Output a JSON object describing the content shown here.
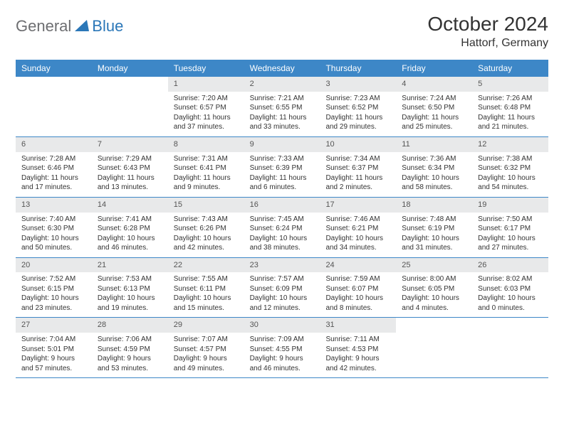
{
  "brand": {
    "part1": "General",
    "part2": "Blue"
  },
  "title": "October 2024",
  "location": "Hattorf, Germany",
  "accent_color": "#3d87c7",
  "header_bg": "#e8e9ea",
  "day_names": [
    "Sunday",
    "Monday",
    "Tuesday",
    "Wednesday",
    "Thursday",
    "Friday",
    "Saturday"
  ],
  "weeks": [
    [
      null,
      null,
      {
        "n": "1",
        "sr": "7:20 AM",
        "ss": "6:57 PM",
        "dl": "11 hours and 37 minutes."
      },
      {
        "n": "2",
        "sr": "7:21 AM",
        "ss": "6:55 PM",
        "dl": "11 hours and 33 minutes."
      },
      {
        "n": "3",
        "sr": "7:23 AM",
        "ss": "6:52 PM",
        "dl": "11 hours and 29 minutes."
      },
      {
        "n": "4",
        "sr": "7:24 AM",
        "ss": "6:50 PM",
        "dl": "11 hours and 25 minutes."
      },
      {
        "n": "5",
        "sr": "7:26 AM",
        "ss": "6:48 PM",
        "dl": "11 hours and 21 minutes."
      }
    ],
    [
      {
        "n": "6",
        "sr": "7:28 AM",
        "ss": "6:46 PM",
        "dl": "11 hours and 17 minutes."
      },
      {
        "n": "7",
        "sr": "7:29 AM",
        "ss": "6:43 PM",
        "dl": "11 hours and 13 minutes."
      },
      {
        "n": "8",
        "sr": "7:31 AM",
        "ss": "6:41 PM",
        "dl": "11 hours and 9 minutes."
      },
      {
        "n": "9",
        "sr": "7:33 AM",
        "ss": "6:39 PM",
        "dl": "11 hours and 6 minutes."
      },
      {
        "n": "10",
        "sr": "7:34 AM",
        "ss": "6:37 PM",
        "dl": "11 hours and 2 minutes."
      },
      {
        "n": "11",
        "sr": "7:36 AM",
        "ss": "6:34 PM",
        "dl": "10 hours and 58 minutes."
      },
      {
        "n": "12",
        "sr": "7:38 AM",
        "ss": "6:32 PM",
        "dl": "10 hours and 54 minutes."
      }
    ],
    [
      {
        "n": "13",
        "sr": "7:40 AM",
        "ss": "6:30 PM",
        "dl": "10 hours and 50 minutes."
      },
      {
        "n": "14",
        "sr": "7:41 AM",
        "ss": "6:28 PM",
        "dl": "10 hours and 46 minutes."
      },
      {
        "n": "15",
        "sr": "7:43 AM",
        "ss": "6:26 PM",
        "dl": "10 hours and 42 minutes."
      },
      {
        "n": "16",
        "sr": "7:45 AM",
        "ss": "6:24 PM",
        "dl": "10 hours and 38 minutes."
      },
      {
        "n": "17",
        "sr": "7:46 AM",
        "ss": "6:21 PM",
        "dl": "10 hours and 34 minutes."
      },
      {
        "n": "18",
        "sr": "7:48 AM",
        "ss": "6:19 PM",
        "dl": "10 hours and 31 minutes."
      },
      {
        "n": "19",
        "sr": "7:50 AM",
        "ss": "6:17 PM",
        "dl": "10 hours and 27 minutes."
      }
    ],
    [
      {
        "n": "20",
        "sr": "7:52 AM",
        "ss": "6:15 PM",
        "dl": "10 hours and 23 minutes."
      },
      {
        "n": "21",
        "sr": "7:53 AM",
        "ss": "6:13 PM",
        "dl": "10 hours and 19 minutes."
      },
      {
        "n": "22",
        "sr": "7:55 AM",
        "ss": "6:11 PM",
        "dl": "10 hours and 15 minutes."
      },
      {
        "n": "23",
        "sr": "7:57 AM",
        "ss": "6:09 PM",
        "dl": "10 hours and 12 minutes."
      },
      {
        "n": "24",
        "sr": "7:59 AM",
        "ss": "6:07 PM",
        "dl": "10 hours and 8 minutes."
      },
      {
        "n": "25",
        "sr": "8:00 AM",
        "ss": "6:05 PM",
        "dl": "10 hours and 4 minutes."
      },
      {
        "n": "26",
        "sr": "8:02 AM",
        "ss": "6:03 PM",
        "dl": "10 hours and 0 minutes."
      }
    ],
    [
      {
        "n": "27",
        "sr": "7:04 AM",
        "ss": "5:01 PM",
        "dl": "9 hours and 57 minutes."
      },
      {
        "n": "28",
        "sr": "7:06 AM",
        "ss": "4:59 PM",
        "dl": "9 hours and 53 minutes."
      },
      {
        "n": "29",
        "sr": "7:07 AM",
        "ss": "4:57 PM",
        "dl": "9 hours and 49 minutes."
      },
      {
        "n": "30",
        "sr": "7:09 AM",
        "ss": "4:55 PM",
        "dl": "9 hours and 46 minutes."
      },
      {
        "n": "31",
        "sr": "7:11 AM",
        "ss": "4:53 PM",
        "dl": "9 hours and 42 minutes."
      },
      null,
      null
    ]
  ],
  "labels": {
    "sunrise": "Sunrise:",
    "sunset": "Sunset:",
    "daylight": "Daylight:"
  }
}
